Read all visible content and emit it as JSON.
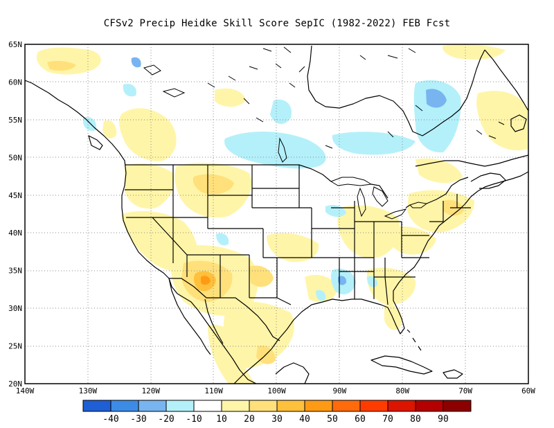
{
  "title": "CFSv2 Precip Heidke Skill Score SepIC (1982-2022) FEB Fcst",
  "map": {
    "lon_range": [
      -140,
      -60
    ],
    "lat_range": [
      20,
      65
    ],
    "lat_labels": [
      "65N",
      "60N",
      "55N",
      "50N",
      "45N",
      "40N",
      "35N",
      "30N",
      "25N",
      "20N"
    ],
    "lon_labels": [
      "140W",
      "130W",
      "120W",
      "110W",
      "100W",
      "90W",
      "80W",
      "70W",
      "60W"
    ],
    "gridlines": true,
    "ocean_color": "#ffffff",
    "land_color": "#ffffff"
  },
  "legend": {
    "colors": [
      "#1e5fd6",
      "#3c8ce6",
      "#78b4f0",
      "#b4f0fa",
      "#ffffff",
      "#fff5a8",
      "#ffe07a",
      "#ffc03c",
      "#ff9a14",
      "#ff6a0a",
      "#ff3c00",
      "#dc1400",
      "#b40000",
      "#8c0000"
    ],
    "labels": [
      "-40",
      "-30",
      "-20",
      "-10",
      "10",
      "20",
      "30",
      "40",
      "50",
      "60",
      "70",
      "80",
      "90"
    ]
  },
  "shading": {
    "light_yellow": "#fff5a8",
    "yellow": "#ffe07a",
    "orange": "#ffc03c",
    "dark_orange": "#ff9a14",
    "light_blue": "#b4f0fa",
    "blue": "#78b4f0"
  }
}
